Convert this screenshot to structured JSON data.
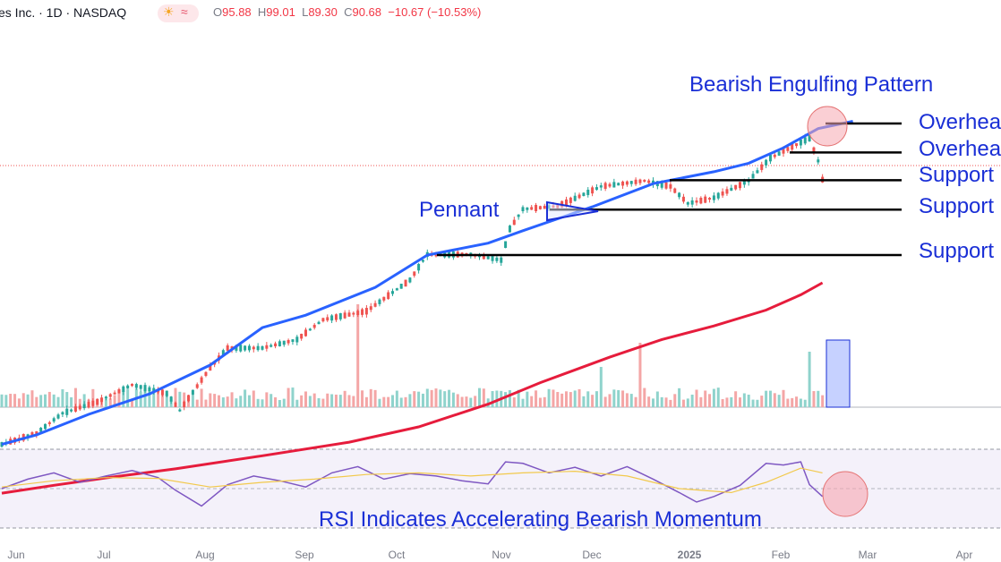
{
  "header": {
    "symbol_text": "es Inc. · 1D · NASDAQ",
    "sun_icon": "sun-icon",
    "wave_icon": "wave-icon",
    "ohlc": {
      "o_label": "O",
      "o_value": "95.88",
      "h_label": "H",
      "h_value": "99.01",
      "l_label": "L",
      "l_value": "89.30",
      "c_label": "C",
      "c_value": "90.68",
      "change": "−10.67 (−10.53%)"
    }
  },
  "colors": {
    "up": "#26a69a",
    "down": "#ef5350",
    "ma_fast": "#2962ff",
    "ma_slow": "#e61c3c",
    "annotation_text": "#1a2fd6",
    "rsi_line": "#7e57c2",
    "rsi_ma": "#f2c94c"
  },
  "annotations": {
    "bearish_engulfing": "Bearish Engulfing Pattern",
    "pennant": "Pennant",
    "overhead_1": "Overhead Resistance",
    "overhead_2": "Overhead Resistance",
    "support_1": "Support",
    "support_2": "Support",
    "support_3": "Support",
    "rsi_note": "RSI Indicates Accelerating Bearish Momentum"
  },
  "chart_data": [
    {
      "type": "candlestick",
      "interval": "1D",
      "x_tick_labels": [
        "Jun",
        "Jul",
        "Aug",
        "Sep",
        "Oct",
        "Nov",
        "Dec",
        "2025",
        "Feb",
        "Mar",
        "Apr"
      ],
      "last_bar": {
        "open": 95.88,
        "high": 99.01,
        "low": 89.3,
        "close": 90.68,
        "change": -10.67,
        "change_pct": -10.53
      },
      "key_levels": {
        "overhead_resistance_upper": 100.6,
        "overhead_resistance_lower": 95.5,
        "support_upper": 90.6,
        "support_middle": 85.4,
        "support_lower": 77.4
      },
      "moving_averages": [
        {
          "points": [
            [
              0,
              44.0
            ],
            [
              40,
              45.7
            ],
            [
              100,
              49.3
            ],
            [
              170,
              52.9
            ],
            [
              240,
              58.0
            ],
            [
              300,
              64.6
            ],
            [
              350,
              66.8
            ],
            [
              430,
              71.7
            ],
            [
              490,
              77.4
            ],
            [
              560,
              79.5
            ],
            [
              600,
              81.7
            ],
            [
              680,
              85.9
            ],
            [
              750,
              90.0
            ],
            [
              820,
              92.1
            ],
            [
              860,
              93.6
            ],
            [
              900,
              96.3
            ],
            [
              940,
              99.7
            ],
            [
              980,
              101.0
            ]
          ]
        },
        {
          "points": [
            [
              0,
              35.4
            ],
            [
              60,
              36.8
            ],
            [
              120,
              38.1
            ],
            [
              200,
              39.7
            ],
            [
              300,
              42.0
            ],
            [
              400,
              44.4
            ],
            [
              480,
              47.1
            ],
            [
              560,
              51.1
            ],
            [
              620,
              54.9
            ],
            [
              700,
              59.4
            ],
            [
              760,
              62.5
            ],
            [
              820,
              64.9
            ],
            [
              880,
              67.7
            ],
            [
              920,
              70.4
            ],
            [
              945,
              72.5
            ]
          ]
        }
      ],
      "volume_spikes": [
        "Sep",
        "Nov",
        "Dec",
        "Feb"
      ]
    },
    {
      "type": "line",
      "name": "RSI",
      "ylim": [
        0,
        100
      ],
      "overbought": 70,
      "oversold": 30,
      "midline": 50,
      "series": [
        {
          "x": [
            0,
            30,
            60,
            90,
            120,
            150,
            180,
            200,
            230,
            260,
            290,
            320,
            350,
            380,
            410,
            440,
            470,
            500,
            530,
            560,
            580,
            600,
            630,
            660,
            690,
            720,
            750,
            780,
            800,
            820,
            850,
            880,
            900,
            920,
            930,
            945
          ],
          "values": [
            50,
            62,
            70,
            58,
            66,
            73,
            64,
            48,
            28,
            55,
            66,
            60,
            52,
            70,
            78,
            62,
            69,
            66,
            60,
            56,
            84,
            82,
            70,
            77,
            66,
            78,
            62,
            45,
            33,
            40,
            54,
            82,
            80,
            84,
            55,
            40
          ]
        },
        {
          "x": [
            0,
            60,
            120,
            180,
            240,
            300,
            360,
            420,
            480,
            540,
            600,
            660,
            720,
            780,
            840,
            880,
            920,
            945
          ],
          "values": [
            52,
            60,
            64,
            63,
            52,
            58,
            62,
            68,
            70,
            66,
            70,
            72,
            66,
            50,
            45,
            58,
            76,
            70
          ]
        }
      ]
    }
  ]
}
